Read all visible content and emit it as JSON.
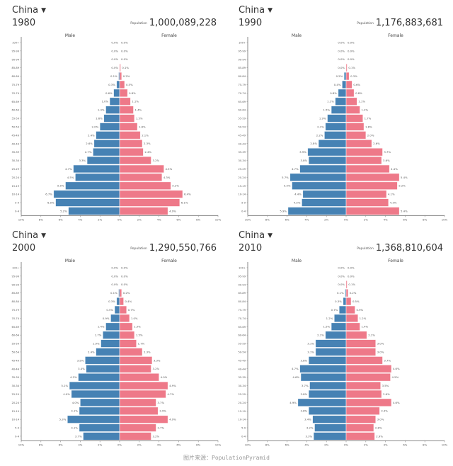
{
  "footer": "图片来源：PopulationPyramid",
  "population_label": "Population",
  "axis": {
    "male_label": "Male",
    "female_label": "Female",
    "x_ticks": [
      "10%",
      "8%",
      "6%",
      "4%",
      "2%",
      "0%",
      "2%",
      "4%",
      "6%",
      "8%",
      "10%"
    ],
    "age_groups": [
      "100+",
      "95-99",
      "90-94",
      "85-89",
      "80-84",
      "75-79",
      "70-74",
      "65-69",
      "60-64",
      "55-59",
      "50-54",
      "45-49",
      "40-44",
      "35-39",
      "30-34",
      "25-29",
      "20-24",
      "15-19",
      "10-14",
      "5-9",
      "0-4"
    ]
  },
  "colors": {
    "male": "#4682b4",
    "female": "#ee7989"
  },
  "panels": [
    {
      "country": "China",
      "year": "1980",
      "population": "1,000,089,228"
    },
    {
      "country": "China",
      "year": "1990",
      "population": "1,176,883,681"
    },
    {
      "country": "China",
      "year": "2000",
      "population": "1,290,550,766"
    },
    {
      "country": "China",
      "year": "2010",
      "population": "1,368,810,604"
    }
  ],
  "chart_data": [
    {
      "type": "bar",
      "title": "China 1980",
      "xlabel": "",
      "ylabel": "",
      "xlim": [
        -10,
        10
      ],
      "unit": "%",
      "categories": [
        "100+",
        "95-99",
        "90-94",
        "85-89",
        "80-84",
        "75-79",
        "70-74",
        "65-69",
        "60-64",
        "55-59",
        "50-54",
        "45-49",
        "40-44",
        "35-39",
        "30-34",
        "25-29",
        "20-24",
        "15-19",
        "10-14",
        "5-9",
        "0-4"
      ],
      "series": [
        {
          "name": "Male",
          "values": [
            0.0,
            0.0,
            0.0,
            0.0,
            0.1,
            0.3,
            0.6,
            1.0,
            1.4,
            1.6,
            2.0,
            2.4,
            2.6,
            2.7,
            3.3,
            4.7,
            4.5,
            5.5,
            6.7,
            6.5,
            5.2
          ]
        },
        {
          "name": "Female",
          "values": [
            0.0,
            0.0,
            0.0,
            0.1,
            0.2,
            0.5,
            0.8,
            1.1,
            1.4,
            1.5,
            1.8,
            2.1,
            2.3,
            2.4,
            3.2,
            4.5,
            4.3,
            5.2,
            6.4,
            6.1,
            4.9
          ]
        }
      ]
    },
    {
      "type": "bar",
      "title": "China 1990",
      "xlabel": "",
      "ylabel": "",
      "xlim": [
        -10,
        10
      ],
      "unit": "%",
      "categories": [
        "100+",
        "95-99",
        "90-94",
        "85-89",
        "80-84",
        "75-79",
        "70-74",
        "65-69",
        "60-64",
        "55-59",
        "50-54",
        "45-49",
        "40-44",
        "35-39",
        "30-34",
        "25-29",
        "20-24",
        "15-19",
        "10-14",
        "5-9",
        "0-4"
      ],
      "series": [
        {
          "name": "Male",
          "values": [
            0.0,
            0.0,
            0.0,
            0.0,
            0.2,
            0.4,
            0.8,
            1.1,
            1.5,
            1.9,
            2.1,
            2.2,
            2.8,
            3.9,
            3.8,
            4.7,
            5.7,
            5.5,
            4.4,
            4.5,
            5.9
          ]
        },
        {
          "name": "Female",
          "values": [
            0.0,
            0.0,
            0.0,
            0.1,
            0.3,
            0.6,
            0.8,
            1.1,
            1.4,
            1.7,
            1.8,
            2.0,
            2.6,
            3.7,
            3.6,
            4.4,
            5.4,
            5.2,
            4.1,
            4.3,
            5.4
          ]
        }
      ]
    },
    {
      "type": "bar",
      "title": "China 2000",
      "xlabel": "",
      "ylabel": "",
      "xlim": [
        -10,
        10
      ],
      "unit": "%",
      "categories": [
        "100+",
        "95-99",
        "90-94",
        "85-89",
        "80-84",
        "75-79",
        "70-74",
        "65-69",
        "60-64",
        "55-59",
        "50-54",
        "45-49",
        "40-44",
        "35-39",
        "30-34",
        "25-29",
        "20-24",
        "15-19",
        "10-14",
        "5-9",
        "0-4"
      ],
      "series": [
        {
          "name": "Male",
          "values": [
            0.0,
            0.0,
            0.0,
            0.1,
            0.3,
            0.5,
            0.9,
            1.4,
            1.7,
            1.9,
            2.4,
            3.5,
            3.4,
            4.2,
            5.1,
            4.9,
            4.0,
            4.1,
            5.3,
            4.1,
            3.7
          ]
        },
        {
          "name": "Female",
          "values": [
            0.0,
            0.0,
            0.0,
            0.2,
            0.4,
            0.7,
            1.0,
            1.3,
            1.5,
            1.7,
            2.3,
            3.3,
            3.2,
            4.0,
            4.9,
            4.7,
            3.7,
            3.9,
            4.9,
            3.7,
            3.2
          ]
        }
      ]
    },
    {
      "type": "bar",
      "title": "China 2010",
      "xlabel": "",
      "ylabel": "",
      "xlim": [
        -10,
        10
      ],
      "unit": "%",
      "categories": [
        "100+",
        "95-99",
        "90-94",
        "85-89",
        "80-84",
        "75-79",
        "70-74",
        "65-69",
        "60-64",
        "55-59",
        "50-54",
        "45-49",
        "40-44",
        "35-39",
        "30-34",
        "25-29",
        "20-24",
        "15-19",
        "10-14",
        "5-9",
        "0-4"
      ],
      "series": [
        {
          "name": "Male",
          "values": [
            0.0,
            0.0,
            0.0,
            0.1,
            0.3,
            0.7,
            1.2,
            1.5,
            2.1,
            3.1,
            3.1,
            3.8,
            4.7,
            4.6,
            3.7,
            3.8,
            4.9,
            3.8,
            3.4,
            3.2,
            3.3
          ]
        },
        {
          "name": "Female",
          "values": [
            0.0,
            0.0,
            0.1,
            0.2,
            0.5,
            0.9,
            1.2,
            1.4,
            2.1,
            3.0,
            3.0,
            3.7,
            4.6,
            4.5,
            3.5,
            3.6,
            4.6,
            3.4,
            3.0,
            2.8,
            2.9
          ]
        }
      ]
    }
  ]
}
